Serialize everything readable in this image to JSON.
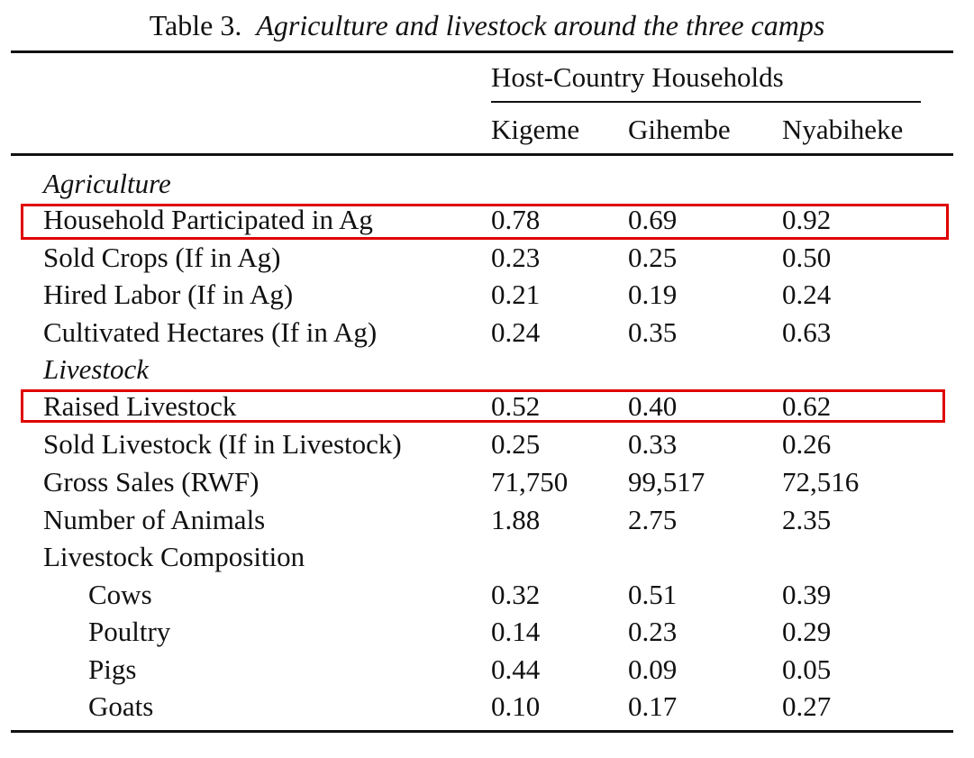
{
  "table": {
    "caption_label": "Table 3.",
    "caption_title": "Agriculture and livestock around the three camps",
    "group_header": "Host-Country Households",
    "columns": [
      "Kigeme",
      "Gihembe",
      "Nyabiheke"
    ],
    "sections": {
      "agriculture": "Agriculture",
      "livestock": "Livestock"
    },
    "rows": [
      {
        "label": "Household Participated in Ag",
        "values": [
          "0.78",
          "0.69",
          "0.92"
        ],
        "highlighted": true
      },
      {
        "label": "Sold Crops (If in Ag)",
        "values": [
          "0.23",
          "0.25",
          "0.50"
        ]
      },
      {
        "label": "Hired Labor (If in Ag)",
        "values": [
          "0.21",
          "0.19",
          "0.24"
        ]
      },
      {
        "label": "Cultivated Hectares (If in Ag)",
        "values": [
          "0.24",
          "0.35",
          "0.63"
        ]
      },
      {
        "label": "Raised Livestock",
        "values": [
          "0.52",
          "0.40",
          "0.62"
        ],
        "highlighted": true
      },
      {
        "label": "Sold Livestock (If in Livestock)",
        "values": [
          "0.25",
          "0.33",
          "0.26"
        ]
      },
      {
        "label": "Gross Sales (RWF)",
        "values": [
          "71,750",
          "99,517",
          "72,516"
        ]
      },
      {
        "label": "Number of Animals",
        "values": [
          "1.88",
          "2.75",
          "2.35"
        ]
      },
      {
        "label": "Livestock Composition",
        "values": [
          "",
          "",
          ""
        ]
      },
      {
        "label": "Cows",
        "values": [
          "0.32",
          "0.51",
          "0.39"
        ]
      },
      {
        "label": "Poultry",
        "values": [
          "0.14",
          "0.23",
          "0.29"
        ]
      },
      {
        "label": "Pigs",
        "values": [
          "0.44",
          "0.09",
          "0.05"
        ]
      },
      {
        "label": "Goats",
        "values": [
          "0.10",
          "0.17",
          "0.27"
        ]
      }
    ]
  },
  "colors": {
    "highlight": "#e00000",
    "text": "#111111"
  }
}
